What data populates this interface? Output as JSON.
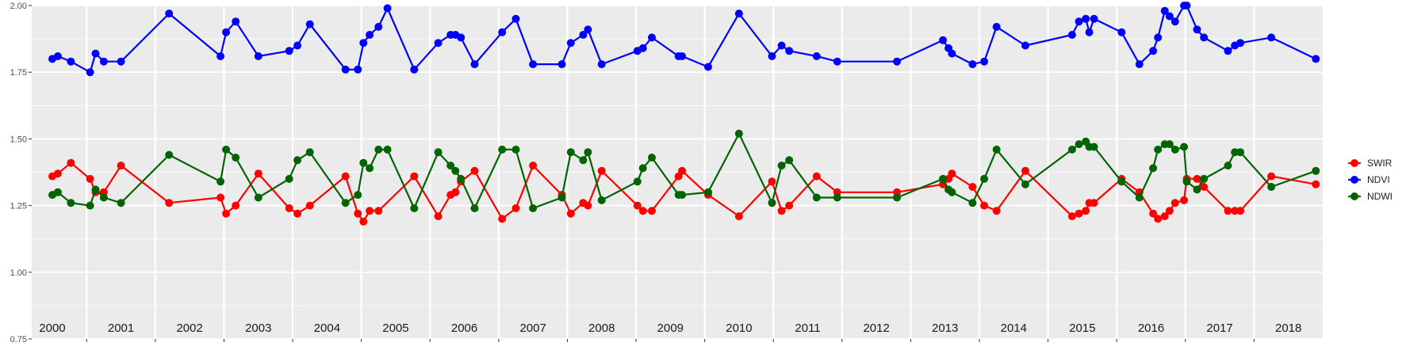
{
  "chart_data": {
    "type": "line",
    "title": "",
    "xlabel": "",
    "ylabel": "",
    "xlim": [
      1999.7,
      2018.5
    ],
    "ylim": [
      0.75,
      2.0
    ],
    "y_ticks": [
      "0.75",
      "1.00",
      "1.25",
      "1.50",
      "1.75",
      "2.00"
    ],
    "x_year_labels": [
      "2000",
      "2001",
      "2002",
      "2003",
      "2004",
      "2005",
      "2006",
      "2007",
      "2008",
      "2009",
      "2010",
      "2011",
      "2012",
      "2013",
      "2014",
      "2015",
      "2016",
      "2017",
      "2018"
    ],
    "grid": true,
    "legend_position": "right",
    "series": [
      {
        "name": "SWIR",
        "color": "#ff0000",
        "points": [
          [
            2000.0,
            1.36
          ],
          [
            2000.08,
            1.37
          ],
          [
            2000.27,
            1.41
          ],
          [
            2000.55,
            1.35
          ],
          [
            2000.63,
            1.3
          ],
          [
            2000.75,
            1.3
          ],
          [
            2001.0,
            1.4
          ],
          [
            2001.7,
            1.26
          ],
          [
            2002.45,
            1.28
          ],
          [
            2002.53,
            1.22
          ],
          [
            2002.67,
            1.25
          ],
          [
            2003.0,
            1.37
          ],
          [
            2003.45,
            1.24
          ],
          [
            2003.57,
            1.22
          ],
          [
            2003.75,
            1.25
          ],
          [
            2004.27,
            1.36
          ],
          [
            2004.45,
            1.22
          ],
          [
            2004.53,
            1.19
          ],
          [
            2004.62,
            1.23
          ],
          [
            2004.75,
            1.23
          ],
          [
            2005.27,
            1.36
          ],
          [
            2005.62,
            1.21
          ],
          [
            2005.8,
            1.29
          ],
          [
            2005.87,
            1.3
          ],
          [
            2005.95,
            1.34
          ],
          [
            2006.15,
            1.38
          ],
          [
            2006.55,
            1.2
          ],
          [
            2006.75,
            1.24
          ],
          [
            2007.0,
            1.4
          ],
          [
            2007.42,
            1.29
          ],
          [
            2007.55,
            1.22
          ],
          [
            2007.73,
            1.26
          ],
          [
            2007.8,
            1.25
          ],
          [
            2008.0,
            1.38
          ],
          [
            2008.52,
            1.25
          ],
          [
            2008.6,
            1.23
          ],
          [
            2008.73,
            1.23
          ],
          [
            2009.12,
            1.36
          ],
          [
            2009.17,
            1.38
          ],
          [
            2009.55,
            1.29
          ],
          [
            2010.0,
            1.21
          ],
          [
            2010.48,
            1.34
          ],
          [
            2010.62,
            1.23
          ],
          [
            2010.73,
            1.25
          ],
          [
            2011.13,
            1.36
          ],
          [
            2011.43,
            1.3
          ],
          [
            2012.3,
            1.3
          ],
          [
            2012.97,
            1.33
          ],
          [
            2013.05,
            1.35
          ],
          [
            2013.1,
            1.37
          ],
          [
            2013.4,
            1.32
          ],
          [
            2013.57,
            1.25
          ],
          [
            2013.75,
            1.23
          ],
          [
            2014.17,
            1.38
          ],
          [
            2014.85,
            1.21
          ],
          [
            2014.95,
            1.22
          ],
          [
            2015.05,
            1.23
          ],
          [
            2015.1,
            1.26
          ],
          [
            2015.17,
            1.26
          ],
          [
            2015.57,
            1.35
          ],
          [
            2015.83,
            1.3
          ],
          [
            2016.03,
            1.22
          ],
          [
            2016.1,
            1.2
          ],
          [
            2016.2,
            1.21
          ],
          [
            2016.27,
            1.23
          ],
          [
            2016.35,
            1.26
          ],
          [
            2016.48,
            1.27
          ],
          [
            2016.52,
            1.35
          ],
          [
            2016.67,
            1.35
          ],
          [
            2016.77,
            1.32
          ],
          [
            2017.12,
            1.23
          ],
          [
            2017.22,
            1.23
          ],
          [
            2017.3,
            1.23
          ],
          [
            2017.75,
            1.36
          ],
          [
            2018.4,
            1.33
          ]
        ]
      },
      {
        "name": "NDVI",
        "color": "#0000ff",
        "points": [
          [
            2000.0,
            1.8
          ],
          [
            2000.08,
            1.81
          ],
          [
            2000.27,
            1.79
          ],
          [
            2000.55,
            1.75
          ],
          [
            2000.63,
            1.82
          ],
          [
            2000.75,
            1.79
          ],
          [
            2001.0,
            1.79
          ],
          [
            2001.7,
            1.97
          ],
          [
            2002.45,
            1.81
          ],
          [
            2002.53,
            1.9
          ],
          [
            2002.67,
            1.94
          ],
          [
            2003.0,
            1.81
          ],
          [
            2003.45,
            1.83
          ],
          [
            2003.57,
            1.85
          ],
          [
            2003.75,
            1.93
          ],
          [
            2004.27,
            1.76
          ],
          [
            2004.45,
            1.76
          ],
          [
            2004.53,
            1.86
          ],
          [
            2004.62,
            1.89
          ],
          [
            2004.75,
            1.92
          ],
          [
            2004.88,
            1.99
          ],
          [
            2005.27,
            1.76
          ],
          [
            2005.62,
            1.86
          ],
          [
            2005.8,
            1.89
          ],
          [
            2005.87,
            1.89
          ],
          [
            2005.95,
            1.88
          ],
          [
            2006.15,
            1.78
          ],
          [
            2006.55,
            1.9
          ],
          [
            2006.75,
            1.95
          ],
          [
            2007.0,
            1.78
          ],
          [
            2007.42,
            1.78
          ],
          [
            2007.55,
            1.86
          ],
          [
            2007.73,
            1.89
          ],
          [
            2007.8,
            1.91
          ],
          [
            2008.0,
            1.78
          ],
          [
            2008.52,
            1.83
          ],
          [
            2008.6,
            1.84
          ],
          [
            2008.73,
            1.88
          ],
          [
            2009.12,
            1.81
          ],
          [
            2009.17,
            1.81
          ],
          [
            2009.55,
            1.77
          ],
          [
            2010.0,
            1.97
          ],
          [
            2010.48,
            1.81
          ],
          [
            2010.62,
            1.85
          ],
          [
            2010.73,
            1.83
          ],
          [
            2011.13,
            1.81
          ],
          [
            2011.43,
            1.79
          ],
          [
            2012.3,
            1.79
          ],
          [
            2012.97,
            1.87
          ],
          [
            2013.05,
            1.84
          ],
          [
            2013.1,
            1.82
          ],
          [
            2013.4,
            1.78
          ],
          [
            2013.57,
            1.79
          ],
          [
            2013.75,
            1.92
          ],
          [
            2014.17,
            1.85
          ],
          [
            2014.85,
            1.89
          ],
          [
            2014.95,
            1.94
          ],
          [
            2015.05,
            1.95
          ],
          [
            2015.1,
            1.9
          ],
          [
            2015.17,
            1.95
          ],
          [
            2015.57,
            1.9
          ],
          [
            2015.83,
            1.78
          ],
          [
            2016.03,
            1.83
          ],
          [
            2016.1,
            1.88
          ],
          [
            2016.2,
            1.98
          ],
          [
            2016.27,
            1.96
          ],
          [
            2016.35,
            1.94
          ],
          [
            2016.48,
            2.0
          ],
          [
            2016.52,
            2.0
          ],
          [
            2016.67,
            1.91
          ],
          [
            2016.77,
            1.88
          ],
          [
            2017.12,
            1.83
          ],
          [
            2017.22,
            1.85
          ],
          [
            2017.3,
            1.86
          ],
          [
            2017.75,
            1.88
          ],
          [
            2018.4,
            1.8
          ]
        ]
      },
      {
        "name": "NDWI",
        "color": "#006400",
        "points": [
          [
            2000.0,
            1.29
          ],
          [
            2000.08,
            1.3
          ],
          [
            2000.27,
            1.26
          ],
          [
            2000.55,
            1.25
          ],
          [
            2000.63,
            1.31
          ],
          [
            2000.75,
            1.28
          ],
          [
            2001.0,
            1.26
          ],
          [
            2001.7,
            1.44
          ],
          [
            2002.45,
            1.34
          ],
          [
            2002.53,
            1.46
          ],
          [
            2002.67,
            1.43
          ],
          [
            2003.0,
            1.28
          ],
          [
            2003.45,
            1.35
          ],
          [
            2003.57,
            1.42
          ],
          [
            2003.75,
            1.45
          ],
          [
            2004.27,
            1.26
          ],
          [
            2004.45,
            1.29
          ],
          [
            2004.53,
            1.41
          ],
          [
            2004.62,
            1.39
          ],
          [
            2004.75,
            1.46
          ],
          [
            2004.88,
            1.46
          ],
          [
            2005.27,
            1.24
          ],
          [
            2005.62,
            1.45
          ],
          [
            2005.8,
            1.4
          ],
          [
            2005.87,
            1.38
          ],
          [
            2005.95,
            1.35
          ],
          [
            2006.15,
            1.24
          ],
          [
            2006.55,
            1.46
          ],
          [
            2006.75,
            1.46
          ],
          [
            2007.0,
            1.24
          ],
          [
            2007.42,
            1.28
          ],
          [
            2007.55,
            1.45
          ],
          [
            2007.73,
            1.42
          ],
          [
            2007.8,
            1.45
          ],
          [
            2008.0,
            1.27
          ],
          [
            2008.52,
            1.34
          ],
          [
            2008.6,
            1.39
          ],
          [
            2008.73,
            1.43
          ],
          [
            2009.12,
            1.29
          ],
          [
            2009.17,
            1.29
          ],
          [
            2009.55,
            1.3
          ],
          [
            2010.0,
            1.52
          ],
          [
            2010.48,
            1.26
          ],
          [
            2010.62,
            1.4
          ],
          [
            2010.73,
            1.42
          ],
          [
            2011.13,
            1.28
          ],
          [
            2011.43,
            1.28
          ],
          [
            2012.3,
            1.28
          ],
          [
            2012.97,
            1.35
          ],
          [
            2013.05,
            1.31
          ],
          [
            2013.1,
            1.3
          ],
          [
            2013.4,
            1.26
          ],
          [
            2013.57,
            1.35
          ],
          [
            2013.75,
            1.46
          ],
          [
            2014.17,
            1.33
          ],
          [
            2014.85,
            1.46
          ],
          [
            2014.95,
            1.48
          ],
          [
            2015.05,
            1.49
          ],
          [
            2015.1,
            1.47
          ],
          [
            2015.17,
            1.47
          ],
          [
            2015.57,
            1.34
          ],
          [
            2015.83,
            1.28
          ],
          [
            2016.03,
            1.39
          ],
          [
            2016.1,
            1.46
          ],
          [
            2016.2,
            1.48
          ],
          [
            2016.27,
            1.48
          ],
          [
            2016.35,
            1.46
          ],
          [
            2016.48,
            1.47
          ],
          [
            2016.52,
            1.34
          ],
          [
            2016.67,
            1.31
          ],
          [
            2016.77,
            1.35
          ],
          [
            2017.12,
            1.4
          ],
          [
            2017.22,
            1.45
          ],
          [
            2017.3,
            1.45
          ],
          [
            2017.75,
            1.32
          ],
          [
            2018.4,
            1.38
          ]
        ]
      }
    ]
  },
  "legend": {
    "items": [
      {
        "label": "SWIR",
        "color": "#ff0000"
      },
      {
        "label": "NDVI",
        "color": "#0000ff"
      },
      {
        "label": "NDWI",
        "color": "#006400"
      }
    ]
  }
}
